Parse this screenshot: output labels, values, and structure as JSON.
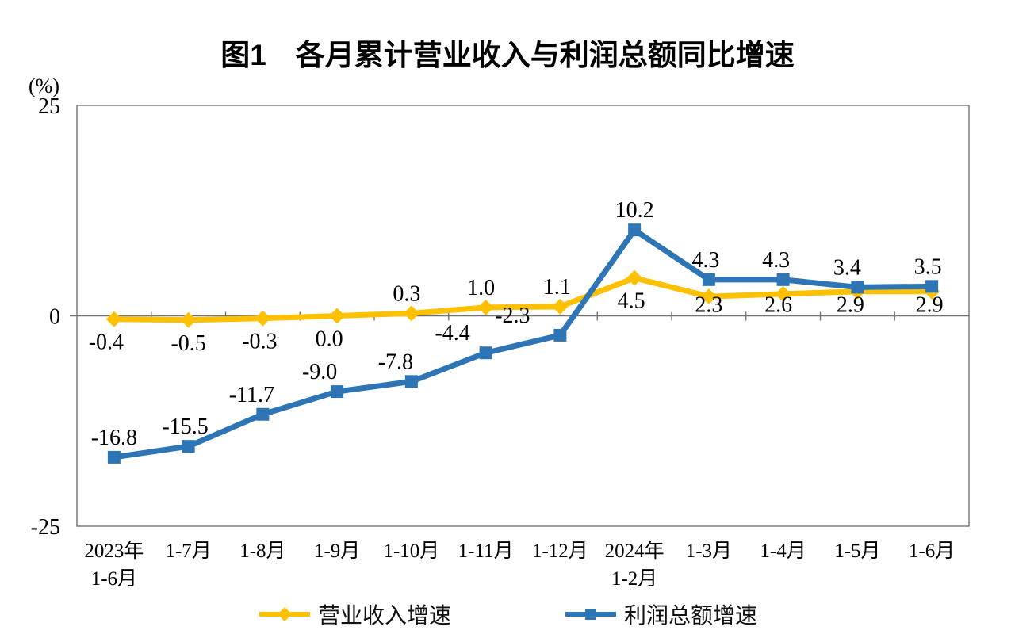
{
  "chart_data": {
    "type": "line",
    "title": "图1　各月累计营业收入与利润总额同比增速",
    "y_unit": "(%)",
    "ylim": [
      -25,
      25
    ],
    "y_ticks": [
      25,
      0,
      -25
    ],
    "grid": false,
    "legend_position": "bottom",
    "axis_color": "#737373",
    "label_color": "#000000",
    "categories": [
      [
        "2023年",
        "1-6月"
      ],
      [
        "1-7月"
      ],
      [
        "1-8月"
      ],
      [
        "1-9月"
      ],
      [
        "1-10月"
      ],
      [
        "1-11月"
      ],
      [
        "1-12月"
      ],
      [
        "2024年",
        "1-2月"
      ],
      [
        "1-3月"
      ],
      [
        "1-4月"
      ],
      [
        "1-5月"
      ],
      [
        "1-6月"
      ]
    ],
    "series": [
      {
        "name": "营业收入增速",
        "color": "#FFC000",
        "marker": "diamond",
        "values": [
          -0.4,
          -0.5,
          -0.3,
          0.0,
          0.3,
          1.0,
          1.1,
          4.5,
          2.3,
          2.6,
          2.9,
          2.9
        ],
        "labels": [
          "-0.4",
          "-0.5",
          "-0.3",
          "0.0",
          "0.3",
          "1.0",
          "1.1",
          "4.5",
          "2.3",
          "2.6",
          "2.9",
          "2.9"
        ],
        "label_positions": [
          "below",
          "below",
          "below",
          "below",
          "above",
          "above",
          "above",
          "below",
          "below",
          "below",
          "below",
          "below"
        ],
        "label_dx": [
          -10,
          0,
          -4,
          -10,
          -6,
          -6,
          -4,
          -4,
          0,
          -6,
          -9,
          -3
        ]
      },
      {
        "name": "利润总额增速",
        "color": "#2E75B6",
        "marker": "square",
        "values": [
          -16.8,
          -15.5,
          -11.7,
          -9.0,
          -7.8,
          -4.4,
          -2.3,
          10.2,
          4.3,
          4.3,
          3.4,
          3.5
        ],
        "labels": [
          "-16.8",
          "-15.5",
          "-11.7",
          "-9.0",
          "-7.8",
          "-4.4",
          "-2.3",
          "10.2",
          "4.3",
          "4.3",
          "3.4",
          "3.5"
        ],
        "label_positions": [
          "above",
          "above",
          "above",
          "above",
          "above",
          "above",
          "above",
          "above",
          "above",
          "above",
          "above",
          "above"
        ],
        "label_dx": [
          0,
          -4,
          -14,
          -22,
          -20,
          -42,
          -60,
          0,
          -4,
          -9,
          -13,
          -5
        ]
      }
    ]
  }
}
